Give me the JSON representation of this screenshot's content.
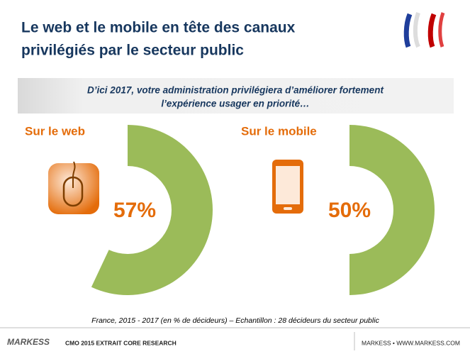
{
  "header": {
    "title": [
      "Le web et le mobile en tête des canaux",
      "privilégiés  par le secteur public"
    ],
    "subtitle": [
      "D’ici 2017, votre administration privilégiera d’améliorer fortement",
      "l’expérience usager  en priorité…"
    ]
  },
  "chart_data": [
    {
      "type": "donut",
      "title": "Sur le web",
      "values": [
        57
      ],
      "value_labels": [
        "57%"
      ],
      "color": "#9bbb59"
    },
    {
      "type": "donut",
      "title": "Sur le mobile",
      "values": [
        50
      ],
      "value_labels": [
        "50%"
      ],
      "color": "#9bbb59"
    }
  ],
  "note": "France, 2015 - 2017 (en % de décideurs) – Echantillon :  28 décideurs du secteur public",
  "footer": {
    "logo": "MARKESS",
    "left": "CMO 2015 EXTRAIT CORE RESEARCH",
    "right": "MARKESS • WWW.MARKESS.COM"
  }
}
